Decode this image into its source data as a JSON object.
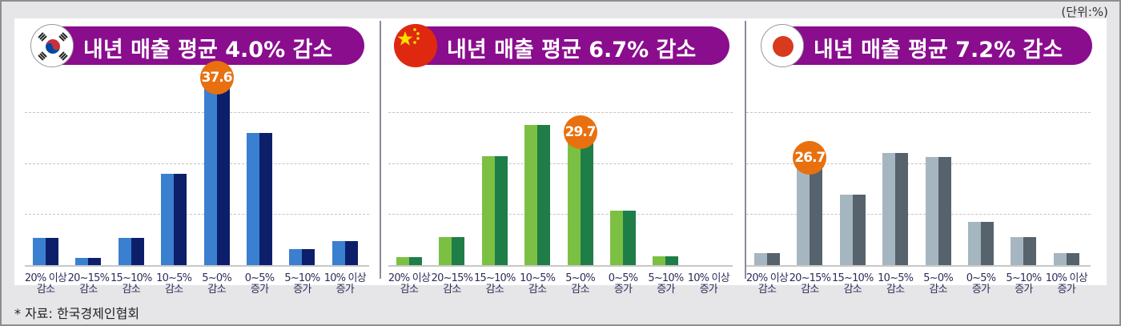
{
  "unit_label": "(단위:%)",
  "source": "* 자료: 한국경제인협회",
  "categories": [
    [
      "20% 이상",
      "감소"
    ],
    [
      "20~15%",
      "감소"
    ],
    [
      "15~10%",
      "감소"
    ],
    [
      "10~5%",
      "감소"
    ],
    [
      "5~0%",
      "감소"
    ],
    [
      "0~5%",
      "증가"
    ],
    [
      "5~10%",
      "증가"
    ],
    [
      "10% 이상",
      "증가"
    ]
  ],
  "panels": [
    {
      "country": "Korea",
      "flag_icon": "south-korea-flag-icon",
      "title": "내년 매출 평균 4.0% 감소",
      "badge": "37.6",
      "highlight_index": 4,
      "colors": {
        "light": "#3a7fd0",
        "dark": "#0d1f6a"
      }
    },
    {
      "country": "China",
      "flag_icon": "china-flag-icon",
      "title": "내년 매출 평균 6.7% 감소",
      "badge": "29.7",
      "highlight_index": 4,
      "colors": {
        "light": "#7cc043",
        "dark": "#1f7d48"
      }
    },
    {
      "country": "Japan",
      "flag_icon": "japan-flag-icon",
      "title": "내년 매출 평균 7.2% 감소",
      "badge": "26.7",
      "highlight_index": 1,
      "colors": {
        "light": "#a6b6c0",
        "dark": "#56636c"
      }
    }
  ],
  "chart_data": [
    {
      "type": "bar",
      "title": "내년 매출 평균 4.0% 감소",
      "series_name": "Korea",
      "categories": [
        "20% 이상 감소",
        "20~15% 감소",
        "15~10% 감소",
        "10~5% 감소",
        "5~0% 감소",
        "0~5% 증가",
        "5~10% 증가",
        "10% 이상 증가"
      ],
      "values": [
        5.6,
        1.5,
        5.6,
        18.7,
        37.6,
        27.1,
        3.3,
        4.9
      ],
      "labeled_values": {
        "5~0% 감소": 37.6
      },
      "xlabel": "",
      "ylabel": "%",
      "grid": true
    },
    {
      "type": "bar",
      "title": "내년 매출 평균 6.7% 감소",
      "series_name": "China",
      "categories": [
        "20% 이상 감소",
        "20~15% 감소",
        "15~10% 감소",
        "10~5% 감소",
        "5~0% 감소",
        "0~5% 증가",
        "5~10% 증가",
        "10% 이상 증가"
      ],
      "values": [
        1.8,
        6.5,
        25.1,
        32.3,
        29.7,
        12.5,
        2.0,
        0
      ],
      "labeled_values": {
        "5~0% 감소": 29.7
      },
      "xlabel": "",
      "ylabel": "%",
      "grid": true
    },
    {
      "type": "bar",
      "title": "내년 매출 평균 7.2% 감소",
      "series_name": "Japan",
      "categories": [
        "20% 이상 감소",
        "20~15% 감소",
        "15~10% 감소",
        "10~5% 감소",
        "5~0% 감소",
        "0~5% 증가",
        "5~10% 증가",
        "10% 이상 증가"
      ],
      "values": [
        3.1,
        26.7,
        18.2,
        29.0,
        27.9,
        11.2,
        7.2,
        3.1
      ],
      "labeled_values": {
        "20~15% 감소": 26.7
      },
      "xlabel": "",
      "ylabel": "%",
      "grid": true
    }
  ]
}
